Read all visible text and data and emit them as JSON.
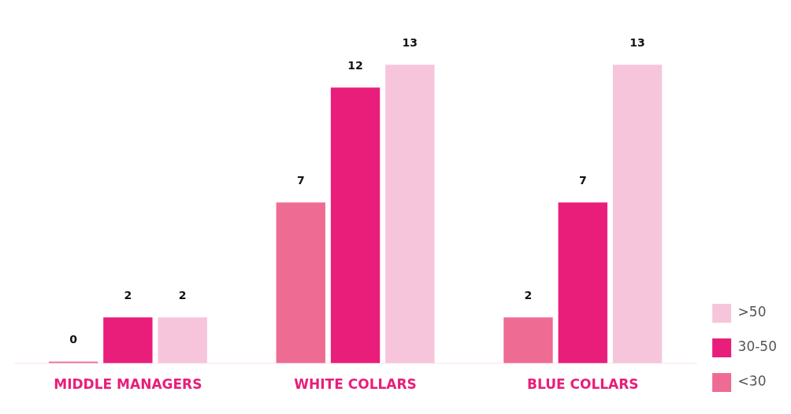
{
  "chart_data": {
    "type": "bar",
    "categories": [
      "MIDDLE MANAGERS",
      "WHITE COLLARS",
      "BLUE COLLARS"
    ],
    "series": [
      {
        "name": "<30",
        "color": "#ee6b94",
        "values": [
          0,
          7,
          2
        ]
      },
      {
        "name": "30-50",
        "color": "#e91e7a",
        "values": [
          2,
          12,
          7
        ]
      },
      {
        "name": ">50",
        "color": "#f6c5dc",
        "values": [
          2,
          13,
          13
        ]
      }
    ],
    "data_labels": true,
    "legend": "bottom right",
    "grid": false
  }
}
